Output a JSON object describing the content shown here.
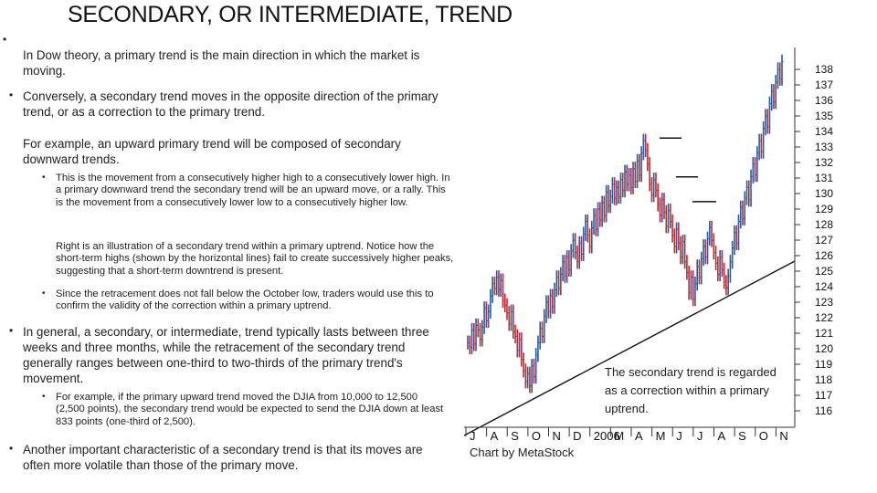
{
  "slide": {
    "title": "SECONDARY, OR INTERMEDIATE, TREND",
    "bullet_char": "•",
    "blocks": [
      "In Dow theory, a primary trend is the main direction in which the market is moving.",
      "Conversely, a secondary trend moves in the opposite direction of the primary trend, or as a correction to the primary trend.",
      "For example, an upward primary trend will be composed of secondary downward trends.",
      "This is the movement from a consecutively higher high to a consecutively lower high. In a primary downward trend the secondary trend will be an upward move, or a rally. This is the movement from a consecutively lower low to a consecutively higher low.",
      "Right is an illustration of a secondary trend within a primary uptrend. Notice how the short-term highs (shown by the horizontal lines) fail to create successively higher peaks, suggesting that a short-term downtrend is present.",
      "Since the retracement does not fall below the October low, traders would use this to confirm the validity of the correction within a primary uptrend.",
      "In general, a secondary, or intermediate, trend typically lasts between three weeks and three months, while the retracement of the secondary trend generally ranges between one-third to two-thirds of the primary trend's movement.",
      "For example, if the primary upward trend moved the DJIA from 10,000 to 12,500 (2,500 points), the secondary trend would be expected to send the DJIA down at least 833 points (one-third of 2,500).",
      "Another important characteristic of a secondary trend is that its moves are often more volatile than those of the primary move."
    ]
  },
  "chart_data": {
    "type": "line",
    "y_ticks": [
      138,
      137,
      136,
      135,
      134,
      133,
      132,
      131,
      130,
      129,
      128,
      127,
      126,
      125,
      124,
      123,
      122,
      121,
      120,
      119,
      118,
      117,
      116
    ],
    "x_ticks": [
      "J",
      "A",
      "S",
      "O",
      "N",
      "D",
      "2006",
      "M",
      "A",
      "M",
      "J",
      "J",
      "A",
      "S",
      "O",
      "N"
    ],
    "annotation": [
      "The secondary trend is regarded",
      "as a correction within a primary",
      "uptrend."
    ],
    "credit": "Chart by MetaStock",
    "ylim": [
      116,
      138
    ],
    "series": [
      {
        "values": [
          120.4,
          120.1,
          121.2,
          120.3,
          121.5,
          121.2,
          120.6,
          121.4,
          122.6,
          121.8,
          122.4,
          123.4,
          124.2,
          123.9,
          124.6,
          123.8,
          124.4,
          123.1,
          122.8,
          122.3,
          121.6,
          122.4,
          121.1,
          120.8,
          119.9,
          120.6,
          119.3,
          118.6,
          117.9,
          118.4,
          117.6,
          118.9,
          118.2,
          119.6,
          120.4,
          121.3,
          120.8,
          122.1,
          123.0,
          122.4,
          123.4,
          122.7,
          123.8,
          124.6,
          123.9,
          124.8,
          125.6,
          124.7,
          125.9,
          125.1,
          126.3,
          127.0,
          126.2,
          125.6,
          126.8,
          126.1,
          127.4,
          128.2,
          127.3,
          126.6,
          127.8,
          128.6,
          127.7,
          129.0,
          128.3,
          129.4,
          128.6,
          130.1,
          129.2,
          129.8,
          130.6,
          129.7,
          130.4,
          129.8,
          130.9,
          130.2,
          131.4,
          130.6,
          131.2,
          130.4,
          131.6,
          130.8,
          132.1,
          131.2,
          132.6,
          133.4,
          132.8,
          131.9,
          130.6,
          129.9,
          130.9,
          130.2,
          129.3,
          128.6,
          129.6,
          128.8,
          127.9,
          128.9,
          128.2,
          127.3,
          126.6,
          127.7,
          126.8,
          125.9,
          126.9,
          125.6,
          124.9,
          123.6,
          124.6,
          123.2,
          124.2,
          125.3,
          124.6,
          125.8,
          126.6,
          125.9,
          127.1,
          127.8,
          127.0,
          126.2,
          125.5,
          124.8,
          125.9,
          125.1,
          124.3,
          123.9,
          124.7,
          125.6,
          126.5,
          127.5,
          126.8,
          128.2,
          129.1,
          128.4,
          129.7,
          130.4,
          129.6,
          131.1,
          131.9,
          131.2,
          132.6,
          133.4,
          132.7,
          134.2,
          135.0,
          134.3,
          135.8,
          136.6,
          135.9,
          137.2,
          138.0,
          137.4,
          138.5
        ]
      }
    ]
  }
}
